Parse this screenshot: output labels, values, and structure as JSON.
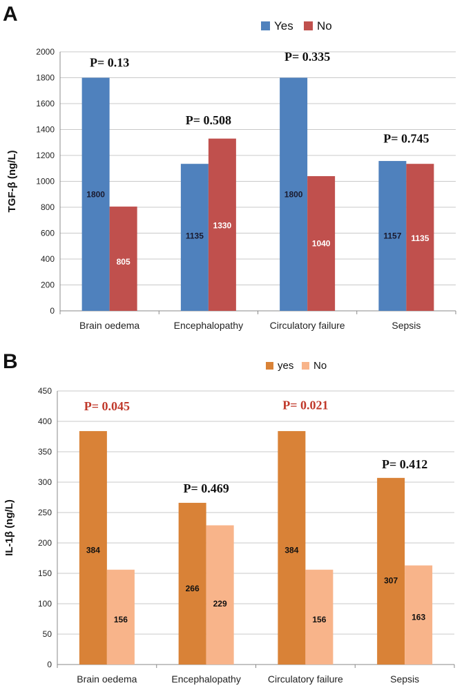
{
  "chart_data": [
    {
      "panel": "A",
      "type": "bar",
      "ylabel": "TGF-β (ng/L)",
      "xlabel": "",
      "ylim": [
        0,
        2000
      ],
      "yticks": [
        0,
        200,
        400,
        600,
        800,
        1000,
        1200,
        1400,
        1600,
        1800,
        2000
      ],
      "grid": true,
      "legend": "top-right",
      "categories": [
        "Brain oedema",
        "Encephalopathy",
        "Circulatory failure",
        "Sepsis"
      ],
      "series": [
        {
          "name": "Yes",
          "color": "#4F81BD",
          "label_color": "#1a1a2e",
          "values": [
            1800,
            1135,
            1800,
            1157
          ]
        },
        {
          "name": "No",
          "color": "#C0504D",
          "label_color": "#ffffff",
          "values": [
            805,
            1330,
            1040,
            1135
          ]
        }
      ],
      "data_labels": {
        "Yes": [
          "1800",
          "1135",
          "1800",
          "1157"
        ],
        "No": [
          "805",
          "1330",
          "1040",
          "1135"
        ]
      },
      "label_values": {
        "Yes": [
          900,
          580,
          900,
          580
        ],
        "No": [
          380,
          660,
          520,
          560
        ]
      },
      "annotations": [
        {
          "text": "P= 0.13",
          "category": 0,
          "value": 1885,
          "color": "#111111"
        },
        {
          "text": "P= 0.508",
          "category": 1,
          "value": 1440,
          "color": "#111111"
        },
        {
          "text": "P= 0.335",
          "category": 2,
          "value": 1930,
          "color": "#111111"
        },
        {
          "text": "P= 0.745",
          "category": 3,
          "value": 1300,
          "color": "#111111"
        }
      ]
    },
    {
      "panel": "B",
      "type": "bar",
      "ylabel": "IL-1β (ng/L)",
      "xlabel": "",
      "ylim": [
        0,
        450
      ],
      "yticks": [
        0,
        50,
        100,
        150,
        200,
        250,
        300,
        350,
        400,
        450
      ],
      "grid": true,
      "legend": "top-right",
      "categories": [
        "Brain oedema",
        "Encephalopathy",
        "Circulatory failure",
        "Sepsis"
      ],
      "series": [
        {
          "name": "yes",
          "color": "#D98237",
          "label_color": "#111111",
          "values": [
            384,
            266,
            384,
            307
          ]
        },
        {
          "name": "No",
          "color": "#F8B48A",
          "label_color": "#111111",
          "values": [
            156,
            229,
            156,
            163
          ]
        }
      ],
      "data_labels": {
        "yes": [
          "384",
          "266",
          "384",
          "307"
        ],
        "No": [
          "156",
          "229",
          "156",
          "163"
        ]
      },
      "label_values": {
        "yes": [
          188,
          125,
          188,
          138
        ],
        "No": [
          74,
          100,
          74,
          78
        ]
      },
      "annotations": [
        {
          "text": "P= 0.045",
          "category": 0,
          "value": 418,
          "color": "#C0392B"
        },
        {
          "text": "P= 0.469",
          "category": 1,
          "value": 283,
          "color": "#111111"
        },
        {
          "text": "P= 0.021",
          "category": 2,
          "value": 420,
          "color": "#C0392B"
        },
        {
          "text": "P= 0.412",
          "category": 3,
          "value": 323,
          "color": "#111111"
        }
      ]
    }
  ]
}
